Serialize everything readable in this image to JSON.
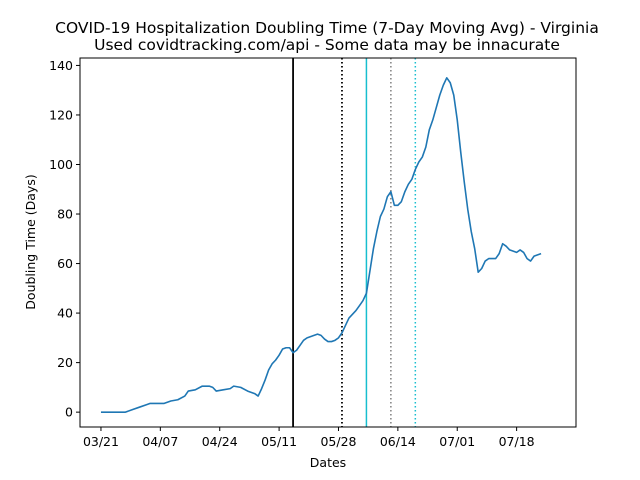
{
  "chart_data": {
    "type": "line",
    "title": "COVID-19 Hospitalization Doubling Time (7-Day Moving Avg) - Virginia",
    "subtitle": "Used covidtracking.com/api - Some data may be innacurate",
    "xlabel": "Dates",
    "ylabel": "Doubling Time (Days)",
    "ylim": [
      -6,
      143
    ],
    "xlim": [
      "2020-03-15",
      "2020-08-04"
    ],
    "x_ticks": [
      {
        "date": "2020-03-21",
        "label": "03/21"
      },
      {
        "date": "2020-04-07",
        "label": "04/07"
      },
      {
        "date": "2020-04-24",
        "label": "04/24"
      },
      {
        "date": "2020-05-11",
        "label": "05/11"
      },
      {
        "date": "2020-05-28",
        "label": "05/28"
      },
      {
        "date": "2020-06-14",
        "label": "06/14"
      },
      {
        "date": "2020-07-01",
        "label": "07/01"
      },
      {
        "date": "2020-07-18",
        "label": "07/18"
      }
    ],
    "y_ticks": [
      0,
      20,
      40,
      60,
      80,
      100,
      120,
      140
    ],
    "grid": false,
    "legend": "none",
    "line_color": "#1f77b4",
    "vertical_lines": [
      {
        "date": "2020-05-15",
        "color": "#000000",
        "style": "solid"
      },
      {
        "date": "2020-05-29",
        "color": "#000000",
        "style": "dotted"
      },
      {
        "date": "2020-06-05",
        "color": "#17becf",
        "style": "solid"
      },
      {
        "date": "2020-06-12",
        "color": "#7f7f7f",
        "style": "dotted"
      },
      {
        "date": "2020-06-19",
        "color": "#17becf",
        "style": "dotted"
      }
    ],
    "series": [
      {
        "points": [
          [
            "2020-03-21",
            0
          ],
          [
            "2020-03-23",
            0
          ],
          [
            "2020-03-25",
            0
          ],
          [
            "2020-03-28",
            0
          ],
          [
            "2020-03-30",
            1
          ],
          [
            "2020-04-01",
            2
          ],
          [
            "2020-04-03",
            3
          ],
          [
            "2020-04-04",
            3.5
          ],
          [
            "2020-04-06",
            3.5
          ],
          [
            "2020-04-08",
            3.5
          ],
          [
            "2020-04-10",
            4.5
          ],
          [
            "2020-04-12",
            5
          ],
          [
            "2020-04-14",
            6.5
          ],
          [
            "2020-04-15",
            8.5
          ],
          [
            "2020-04-17",
            9
          ],
          [
            "2020-04-19",
            10.5
          ],
          [
            "2020-04-21",
            10.5
          ],
          [
            "2020-04-22",
            10
          ],
          [
            "2020-04-23",
            8.5
          ],
          [
            "2020-04-25",
            9
          ],
          [
            "2020-04-27",
            9.5
          ],
          [
            "2020-04-28",
            10.5
          ],
          [
            "2020-04-30",
            10
          ],
          [
            "2020-05-02",
            8.5
          ],
          [
            "2020-05-04",
            7.5
          ],
          [
            "2020-05-05",
            6.5
          ],
          [
            "2020-05-06",
            9.5
          ],
          [
            "2020-05-07",
            13
          ],
          [
            "2020-05-08",
            17
          ],
          [
            "2020-05-09",
            19.5
          ],
          [
            "2020-05-10",
            21
          ],
          [
            "2020-05-11",
            23
          ],
          [
            "2020-05-12",
            25.5
          ],
          [
            "2020-05-13",
            26
          ],
          [
            "2020-05-14",
            26
          ],
          [
            "2020-05-15",
            24
          ],
          [
            "2020-05-16",
            25
          ],
          [
            "2020-05-17",
            27
          ],
          [
            "2020-05-18",
            29
          ],
          [
            "2020-05-19",
            30
          ],
          [
            "2020-05-21",
            31
          ],
          [
            "2020-05-22",
            31.5
          ],
          [
            "2020-05-23",
            31
          ],
          [
            "2020-05-24",
            29.5
          ],
          [
            "2020-05-25",
            28.5
          ],
          [
            "2020-05-26",
            28.5
          ],
          [
            "2020-05-27",
            29
          ],
          [
            "2020-05-28",
            30
          ],
          [
            "2020-05-29",
            32
          ],
          [
            "2020-05-30",
            35
          ],
          [
            "2020-05-31",
            38
          ],
          [
            "2020-06-01",
            39.5
          ],
          [
            "2020-06-02",
            41
          ],
          [
            "2020-06-03",
            43
          ],
          [
            "2020-06-04",
            45
          ],
          [
            "2020-06-05",
            48
          ],
          [
            "2020-06-06",
            57
          ],
          [
            "2020-06-07",
            66
          ],
          [
            "2020-06-08",
            73
          ],
          [
            "2020-06-09",
            79
          ],
          [
            "2020-06-10",
            82
          ],
          [
            "2020-06-11",
            87
          ],
          [
            "2020-06-12",
            89
          ],
          [
            "2020-06-13",
            83.5
          ],
          [
            "2020-06-14",
            83.5
          ],
          [
            "2020-06-15",
            85
          ],
          [
            "2020-06-16",
            89
          ],
          [
            "2020-06-17",
            92
          ],
          [
            "2020-06-18",
            94
          ],
          [
            "2020-06-19",
            98
          ],
          [
            "2020-06-20",
            101
          ],
          [
            "2020-06-21",
            103
          ],
          [
            "2020-06-22",
            107
          ],
          [
            "2020-06-23",
            114
          ],
          [
            "2020-06-24",
            118
          ],
          [
            "2020-06-25",
            123
          ],
          [
            "2020-06-26",
            128
          ],
          [
            "2020-06-27",
            132
          ],
          [
            "2020-06-28",
            135
          ],
          [
            "2020-06-29",
            133
          ],
          [
            "2020-06-30",
            128
          ],
          [
            "2020-07-01",
            118
          ],
          [
            "2020-07-02",
            105
          ],
          [
            "2020-07-03",
            93
          ],
          [
            "2020-07-04",
            82
          ],
          [
            "2020-07-05",
            73
          ],
          [
            "2020-07-06",
            66
          ],
          [
            "2020-07-07",
            56.5
          ],
          [
            "2020-07-08",
            58
          ],
          [
            "2020-07-09",
            61
          ],
          [
            "2020-07-10",
            62
          ],
          [
            "2020-07-11",
            62
          ],
          [
            "2020-07-12",
            62
          ],
          [
            "2020-07-13",
            64
          ],
          [
            "2020-07-14",
            68
          ],
          [
            "2020-07-15",
            67
          ],
          [
            "2020-07-16",
            65.5
          ],
          [
            "2020-07-17",
            65
          ],
          [
            "2020-07-18",
            64.5
          ],
          [
            "2020-07-19",
            65.5
          ],
          [
            "2020-07-20",
            64.5
          ],
          [
            "2020-07-21",
            62
          ],
          [
            "2020-07-22",
            61
          ],
          [
            "2020-07-23",
            63
          ],
          [
            "2020-07-24",
            63.5
          ],
          [
            "2020-07-25",
            64
          ]
        ]
      }
    ]
  }
}
